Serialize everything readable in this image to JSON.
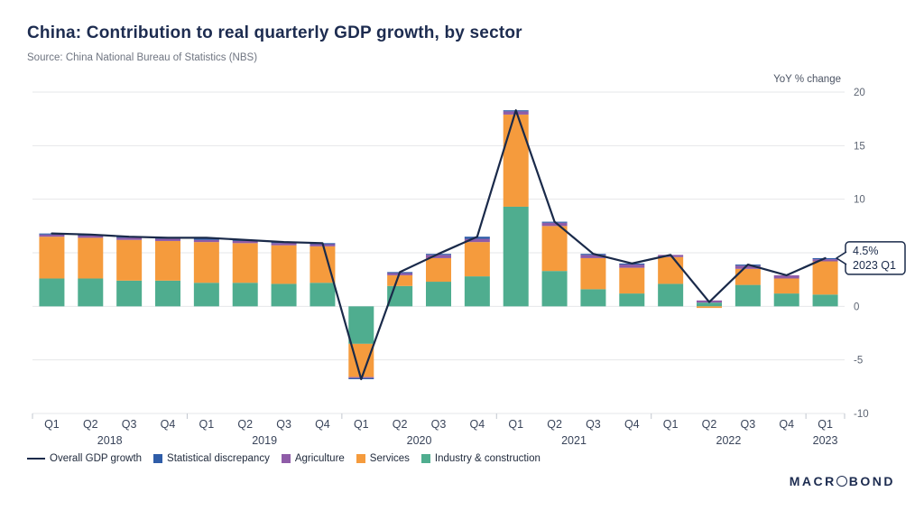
{
  "header": {
    "title": "China: Contribution to real quarterly GDP growth, by sector",
    "source": "Source: China National Bureau of Statistics (NBS)"
  },
  "chart_data": {
    "type": "bar",
    "subtype": "stacked-bars-with-overlay-line",
    "title": "China: Contribution to real quarterly GDP growth, by sector",
    "ylabel": "YoY % change",
    "ylim": [
      -10,
      20
    ],
    "yticks": [
      20,
      15,
      10,
      5,
      0,
      -5,
      -10
    ],
    "grid_color": "#e6e7ea",
    "categories": [
      "Q1",
      "Q2",
      "Q3",
      "Q4",
      "Q1",
      "Q2",
      "Q3",
      "Q4",
      "Q1",
      "Q2",
      "Q3",
      "Q4",
      "Q1",
      "Q2",
      "Q3",
      "Q4",
      "Q1",
      "Q2",
      "Q3",
      "Q4",
      "Q1"
    ],
    "year_groups": [
      {
        "label": "2018",
        "span": 4
      },
      {
        "label": "2019",
        "span": 4
      },
      {
        "label": "2020",
        "span": 4
      },
      {
        "label": "2021",
        "span": 4
      },
      {
        "label": "2022",
        "span": 4
      },
      {
        "label": "2023",
        "span": 1
      }
    ],
    "series": [
      {
        "name": "Industry & construction",
        "color": "#4fad8f",
        "values": [
          2.6,
          2.6,
          2.4,
          2.4,
          2.2,
          2.2,
          2.1,
          2.2,
          -3.5,
          1.9,
          2.3,
          2.8,
          9.3,
          3.3,
          1.6,
          1.2,
          2.1,
          0.35,
          2.0,
          1.2,
          1.1
        ]
      },
      {
        "name": "Services",
        "color": "#f59b3d",
        "values": [
          3.9,
          3.8,
          3.8,
          3.7,
          3.8,
          3.7,
          3.6,
          3.4,
          -3.1,
          1.0,
          2.2,
          3.2,
          8.6,
          4.2,
          2.9,
          2.4,
          2.5,
          -0.15,
          1.5,
          1.4,
          3.1
        ]
      },
      {
        "name": "Agriculture",
        "color": "#8f5ca8",
        "values": [
          0.2,
          0.2,
          0.2,
          0.2,
          0.2,
          0.2,
          0.2,
          0.2,
          -0.1,
          0.2,
          0.3,
          0.3,
          0.3,
          0.3,
          0.3,
          0.3,
          0.2,
          0.2,
          0.3,
          0.3,
          0.2
        ]
      },
      {
        "name": "Statistical discrepancy",
        "color": "#2f5da8",
        "values": [
          0.1,
          0.1,
          0.1,
          0.1,
          0.2,
          0.1,
          0.1,
          0.1,
          -0.1,
          0.1,
          0.1,
          0.2,
          0.1,
          0.1,
          0.1,
          0.1,
          0.0,
          0.0,
          0.1,
          0.0,
          0.1
        ]
      }
    ],
    "line": {
      "name": "Overall GDP growth",
      "color": "#1a2a4a",
      "values": [
        6.8,
        6.7,
        6.5,
        6.4,
        6.4,
        6.2,
        6.0,
        5.9,
        -6.8,
        3.2,
        4.9,
        6.5,
        18.3,
        7.9,
        4.9,
        4.0,
        4.8,
        0.4,
        3.9,
        2.9,
        4.5
      ]
    },
    "annotation": {
      "value_label": "4.5%",
      "period_label": "2023 Q1",
      "index": 20,
      "value": 4.5
    },
    "legend_position": "bottom"
  },
  "legend": {
    "items": [
      {
        "type": "line",
        "label": "Overall GDP growth",
        "color": "#1a2a4a"
      },
      {
        "type": "square",
        "label": "Statistical discrepancy",
        "color": "#2f5da8"
      },
      {
        "type": "square",
        "label": "Agriculture",
        "color": "#8f5ca8"
      },
      {
        "type": "square",
        "label": "Services",
        "color": "#f59b3d"
      },
      {
        "type": "square",
        "label": "Industry & construction",
        "color": "#4fad8f"
      }
    ]
  },
  "branding": {
    "left": "MACR",
    "right": "BOND"
  }
}
